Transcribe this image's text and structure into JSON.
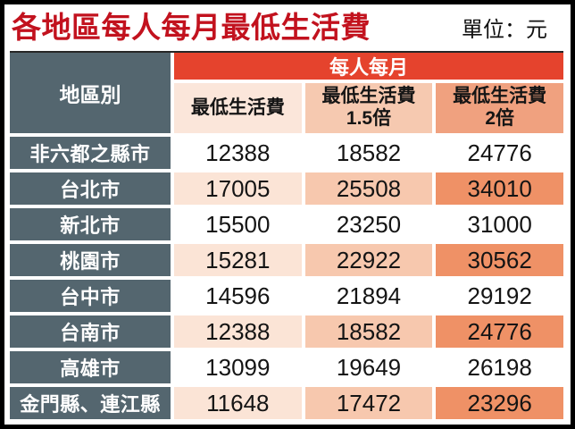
{
  "title": "各地區每人每月最低生活費",
  "unit_label": "單位：元",
  "header": {
    "region": "地區別",
    "group": "每人每月",
    "col1_line1": "最低生活費",
    "col2_line1": "最低生活費",
    "col2_line2": "1.5倍",
    "col3_line1": "最低生活費",
    "col3_line2": "2倍"
  },
  "colors": {
    "title_red": "#c2121e",
    "band_red": "#e5432d",
    "slate": "#54666f",
    "peach_light": "#fbe4d6",
    "peach_mid": "#f7c8ae",
    "salmon_dark": "#ef9166",
    "frame_black": "#000000"
  },
  "chart_data": {
    "type": "table",
    "title": "各地區每人每月最低生活費",
    "unit": "元",
    "region_column_header": "地區別",
    "group_header": "每人每月",
    "value_columns": [
      "最低生活費",
      "最低生活費1.5倍",
      "最低生活費2倍"
    ],
    "rows": [
      {
        "region": "非六都之縣市",
        "values": [
          12388,
          18582,
          24776
        ]
      },
      {
        "region": "台北市",
        "values": [
          17005,
          25508,
          34010
        ]
      },
      {
        "region": "新北市",
        "values": [
          15500,
          23250,
          31000
        ]
      },
      {
        "region": "桃園市",
        "values": [
          15281,
          22922,
          30562
        ]
      },
      {
        "region": "台中市",
        "values": [
          14596,
          21894,
          29192
        ]
      },
      {
        "region": "台南市",
        "values": [
          12388,
          18582,
          24776
        ]
      },
      {
        "region": "高雄市",
        "values": [
          13099,
          19649,
          26198
        ]
      },
      {
        "region": "金門縣、連江縣",
        "values": [
          11648,
          17472,
          23296
        ]
      }
    ],
    "row_tint_pattern": "even rows white, odd rows peach/salmon tint",
    "layout": {
      "columns": 4,
      "header_rows": 2,
      "body_rows": 8
    }
  }
}
